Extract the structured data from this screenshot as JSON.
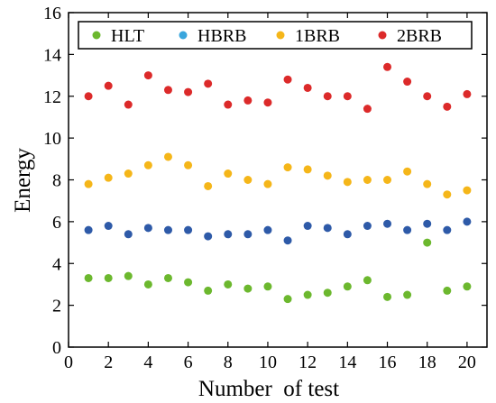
{
  "chart_data": {
    "type": "scatter",
    "xlabel": "Number  of test",
    "ylabel": "Energy",
    "xlim": [
      0,
      21
    ],
    "ylim": [
      0,
      16
    ],
    "xticks": [
      0,
      2,
      4,
      6,
      8,
      10,
      12,
      14,
      16,
      18,
      20
    ],
    "yticks": [
      0,
      2,
      4,
      6,
      8,
      10,
      12,
      14,
      16
    ],
    "grid": false,
    "legend_position": "top",
    "x": [
      1,
      2,
      3,
      4,
      5,
      6,
      7,
      8,
      9,
      10,
      11,
      12,
      13,
      14,
      15,
      16,
      17,
      18,
      19,
      20
    ],
    "series": [
      {
        "name": "HLT",
        "color": "#6cb82e",
        "legend_color": "#6cb82e",
        "values": [
          3.3,
          3.3,
          3.4,
          3.0,
          3.3,
          3.1,
          2.7,
          3.0,
          2.8,
          2.9,
          2.3,
          2.5,
          2.6,
          2.9,
          3.2,
          2.4,
          2.5,
          5.0,
          2.7,
          2.9
        ]
      },
      {
        "name": "HBRB",
        "color": "#2e5aa8",
        "legend_color": "#3aa6dd",
        "values": [
          5.6,
          5.8,
          5.4,
          5.7,
          5.6,
          5.6,
          5.3,
          5.4,
          5.4,
          5.6,
          5.1,
          5.8,
          5.7,
          5.4,
          5.8,
          5.9,
          5.6,
          5.9,
          5.6,
          6.0
        ]
      },
      {
        "name": "1BRB",
        "color": "#f5b619",
        "legend_color": "#f5b619",
        "values": [
          7.8,
          8.1,
          8.3,
          8.7,
          9.1,
          8.7,
          7.7,
          8.3,
          8.0,
          7.8,
          8.6,
          8.5,
          8.2,
          7.9,
          8.0,
          8.0,
          8.4,
          7.8,
          7.3,
          7.5
        ]
      },
      {
        "name": "2BRB",
        "color": "#dc2a2a",
        "legend_color": "#dc2a2a",
        "values": [
          12.0,
          12.5,
          11.6,
          13.0,
          12.3,
          12.2,
          12.6,
          11.6,
          11.8,
          11.7,
          12.8,
          12.4,
          12.0,
          12.0,
          11.4,
          13.4,
          12.7,
          12.0,
          11.5,
          12.1
        ]
      }
    ]
  }
}
